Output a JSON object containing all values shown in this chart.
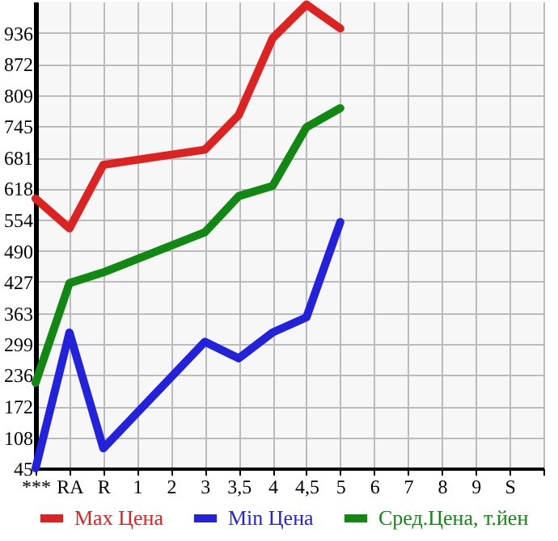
{
  "chart_data": {
    "type": "line",
    "categories": [
      "***",
      "RA",
      "R",
      "1",
      "2",
      "3",
      "3,5",
      "4",
      "4,5",
      "5",
      "6",
      "7",
      "8",
      "9",
      "S",
      null
    ],
    "series": [
      {
        "name": "Max Цена",
        "color": "#dd2222",
        "values": [
          597,
          536,
          666,
          null,
          null,
          697,
          768,
          925,
          994,
          945,
          null,
          null,
          null,
          null,
          null,
          null
        ]
      },
      {
        "name": "Min Цена",
        "color": "#2222dd",
        "values": [
          45,
          323,
          86,
          null,
          null,
          304,
          270,
          323,
          354,
          549,
          null,
          null,
          null,
          null,
          null,
          null
        ]
      },
      {
        "name": "Сред.Цена, т.йен",
        "color": "#118811",
        "values": [
          220,
          424,
          446,
          null,
          null,
          528,
          602,
          623,
          743,
          782,
          null,
          null,
          null,
          null,
          null,
          null
        ]
      }
    ],
    "ylim": [
      45,
      1000
    ],
    "yticks": [
      45,
      108,
      172,
      236,
      299,
      363,
      427,
      490,
      554,
      618,
      681,
      745,
      809,
      872,
      936
    ],
    "grid": true,
    "legend": "bottom",
    "line_style": "solid"
  }
}
